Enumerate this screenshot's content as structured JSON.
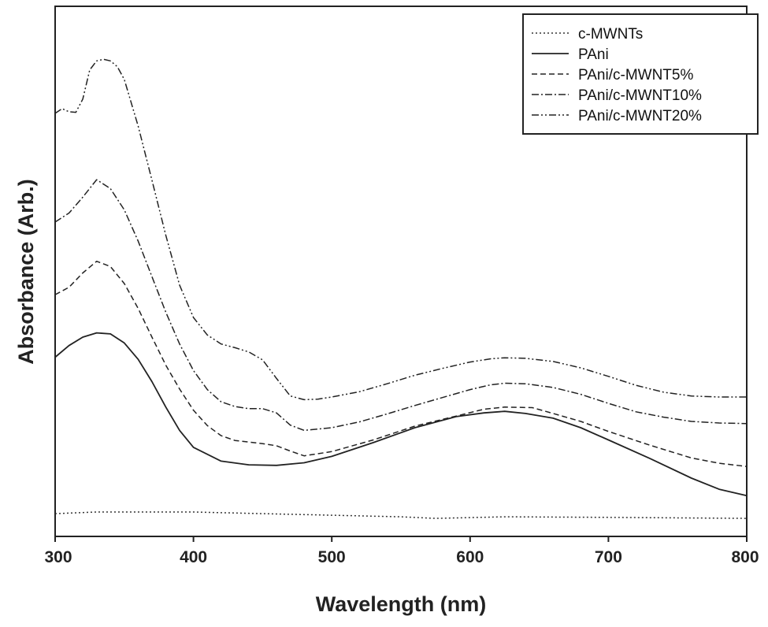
{
  "chart_data": {
    "type": "line",
    "title": "",
    "xlabel": "Wavelength (nm)",
    "ylabel": "Absorbance (Arb.)",
    "xlim": [
      300,
      800
    ],
    "ylim": [
      0,
      1
    ],
    "x_ticks": [
      300,
      400,
      500,
      600,
      700,
      800
    ],
    "y_ticks_shown": false,
    "grid": false,
    "legend_position": "top-right",
    "series": [
      {
        "name": "c-MWNTs",
        "style": "dotted",
        "color": "#333333",
        "points": [
          [
            300,
            0.043
          ],
          [
            330,
            0.046
          ],
          [
            400,
            0.046
          ],
          [
            450,
            0.043
          ],
          [
            500,
            0.04
          ],
          [
            550,
            0.037
          ],
          [
            575,
            0.034
          ],
          [
            625,
            0.037
          ],
          [
            700,
            0.036
          ],
          [
            800,
            0.034
          ]
        ]
      },
      {
        "name": "PAni",
        "style": "solid",
        "color": "#222222",
        "points": [
          [
            300,
            0.338
          ],
          [
            310,
            0.36
          ],
          [
            320,
            0.376
          ],
          [
            330,
            0.384
          ],
          [
            340,
            0.382
          ],
          [
            350,
            0.365
          ],
          [
            360,
            0.334
          ],
          [
            370,
            0.292
          ],
          [
            380,
            0.244
          ],
          [
            390,
            0.2
          ],
          [
            400,
            0.168
          ],
          [
            420,
            0.142
          ],
          [
            440,
            0.135
          ],
          [
            460,
            0.134
          ],
          [
            480,
            0.139
          ],
          [
            500,
            0.151
          ],
          [
            530,
            0.177
          ],
          [
            560,
            0.205
          ],
          [
            590,
            0.226
          ],
          [
            610,
            0.233
          ],
          [
            625,
            0.236
          ],
          [
            640,
            0.232
          ],
          [
            660,
            0.223
          ],
          [
            680,
            0.205
          ],
          [
            700,
            0.182
          ],
          [
            730,
            0.147
          ],
          [
            760,
            0.11
          ],
          [
            780,
            0.089
          ],
          [
            800,
            0.077
          ]
        ]
      },
      {
        "name": "PAni/c-MWNT5%",
        "style": "dashed",
        "color": "#222222",
        "points": [
          [
            300,
            0.456
          ],
          [
            310,
            0.47
          ],
          [
            320,
            0.497
          ],
          [
            330,
            0.519
          ],
          [
            340,
            0.509
          ],
          [
            350,
            0.477
          ],
          [
            360,
            0.43
          ],
          [
            370,
            0.376
          ],
          [
            380,
            0.323
          ],
          [
            390,
            0.278
          ],
          [
            400,
            0.238
          ],
          [
            410,
            0.209
          ],
          [
            420,
            0.19
          ],
          [
            430,
            0.181
          ],
          [
            450,
            0.175
          ],
          [
            460,
            0.171
          ],
          [
            470,
            0.161
          ],
          [
            480,
            0.152
          ],
          [
            500,
            0.16
          ],
          [
            530,
            0.182
          ],
          [
            560,
            0.208
          ],
          [
            590,
            0.227
          ],
          [
            610,
            0.24
          ],
          [
            625,
            0.244
          ],
          [
            645,
            0.243
          ],
          [
            660,
            0.232
          ],
          [
            680,
            0.217
          ],
          [
            700,
            0.198
          ],
          [
            730,
            0.172
          ],
          [
            760,
            0.148
          ],
          [
            780,
            0.138
          ],
          [
            800,
            0.132
          ]
        ]
      },
      {
        "name": "PAni/c-MWNT10%",
        "style": "dash-dot",
        "color": "#222222",
        "points": [
          [
            300,
            0.593
          ],
          [
            310,
            0.61
          ],
          [
            320,
            0.64
          ],
          [
            330,
            0.673
          ],
          [
            340,
            0.656
          ],
          [
            350,
            0.616
          ],
          [
            360,
            0.557
          ],
          [
            370,
            0.49
          ],
          [
            380,
            0.423
          ],
          [
            390,
            0.363
          ],
          [
            400,
            0.313
          ],
          [
            410,
            0.277
          ],
          [
            420,
            0.254
          ],
          [
            430,
            0.245
          ],
          [
            440,
            0.241
          ],
          [
            450,
            0.241
          ],
          [
            460,
            0.233
          ],
          [
            470,
            0.21
          ],
          [
            480,
            0.2
          ],
          [
            500,
            0.205
          ],
          [
            520,
            0.216
          ],
          [
            540,
            0.231
          ],
          [
            560,
            0.247
          ],
          [
            580,
            0.262
          ],
          [
            600,
            0.277
          ],
          [
            615,
            0.286
          ],
          [
            625,
            0.289
          ],
          [
            640,
            0.288
          ],
          [
            660,
            0.281
          ],
          [
            680,
            0.268
          ],
          [
            700,
            0.251
          ],
          [
            720,
            0.235
          ],
          [
            740,
            0.225
          ],
          [
            760,
            0.217
          ],
          [
            780,
            0.214
          ],
          [
            800,
            0.213
          ]
        ]
      },
      {
        "name": "PAni/c-MWNT20%",
        "style": "dash-dot-dot",
        "color": "#222222",
        "points": [
          [
            300,
            0.798
          ],
          [
            305,
            0.807
          ],
          [
            310,
            0.801
          ],
          [
            315,
            0.8
          ],
          [
            320,
            0.825
          ],
          [
            325,
            0.88
          ],
          [
            330,
            0.897
          ],
          [
            335,
            0.9
          ],
          [
            340,
            0.897
          ],
          [
            345,
            0.886
          ],
          [
            350,
            0.862
          ],
          [
            360,
            0.774
          ],
          [
            370,
            0.672
          ],
          [
            380,
            0.568
          ],
          [
            390,
            0.474
          ],
          [
            400,
            0.413
          ],
          [
            410,
            0.38
          ],
          [
            420,
            0.363
          ],
          [
            430,
            0.356
          ],
          [
            440,
            0.348
          ],
          [
            450,
            0.333
          ],
          [
            460,
            0.298
          ],
          [
            470,
            0.265
          ],
          [
            480,
            0.258
          ],
          [
            490,
            0.259
          ],
          [
            500,
            0.263
          ],
          [
            520,
            0.273
          ],
          [
            540,
            0.288
          ],
          [
            560,
            0.304
          ],
          [
            580,
            0.317
          ],
          [
            600,
            0.329
          ],
          [
            615,
            0.335
          ],
          [
            625,
            0.337
          ],
          [
            640,
            0.336
          ],
          [
            660,
            0.33
          ],
          [
            680,
            0.318
          ],
          [
            700,
            0.302
          ],
          [
            720,
            0.285
          ],
          [
            740,
            0.272
          ],
          [
            760,
            0.265
          ],
          [
            780,
            0.263
          ],
          [
            800,
            0.263
          ]
        ]
      }
    ]
  }
}
